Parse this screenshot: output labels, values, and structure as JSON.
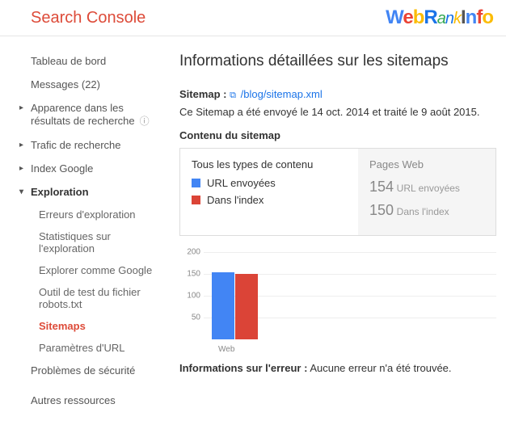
{
  "header": {
    "title": "Search Console"
  },
  "sidebar": {
    "dashboard": "Tableau de bord",
    "messages": "Messages (22)",
    "appearance": "Apparence dans les résultats de recherche",
    "traffic": "Trafic de recherche",
    "index": "Index Google",
    "exploration": "Exploration",
    "sub": {
      "errors": "Erreurs d'exploration",
      "stats": "Statistiques sur l'exploration",
      "fetch": "Explorer comme Google",
      "robots": "Outil de test du fichier robots.txt",
      "sitemaps": "Sitemaps",
      "params": "Paramètres d'URL"
    },
    "security": "Problèmes de sécurité",
    "other": "Autres ressources"
  },
  "main": {
    "title": "Informations détaillées sur les sitemaps",
    "sitemap_label": "Sitemap :",
    "sitemap_path": "/blog/sitemap.xml",
    "info_text": "Ce Sitemap a été envoyé le 14 oct. 2014 et traité le 9 août 2015.",
    "section_title": "Contenu du sitemap",
    "legend": {
      "title": "Tous les types de contenu",
      "sent": "URL envoyées",
      "indexed": "Dans l'index"
    },
    "stats": {
      "title": "Pages Web",
      "sent_val": "154",
      "sent_label": "URL envoyées",
      "indexed_val": "150",
      "indexed_label": "Dans l'index"
    },
    "chart": {
      "type": "bar",
      "ymax": 200,
      "ticks": [
        200,
        150,
        100,
        50
      ],
      "category": "Web",
      "bars": [
        {
          "value": 154,
          "color": "#4285f4"
        },
        {
          "value": 150,
          "color": "#db4437"
        }
      ],
      "colors": {
        "sent": "#4285f4",
        "indexed": "#db4437"
      }
    },
    "error_label": "Informations sur l'erreur :",
    "error_text": "Aucune erreur n'a été trouvée."
  }
}
